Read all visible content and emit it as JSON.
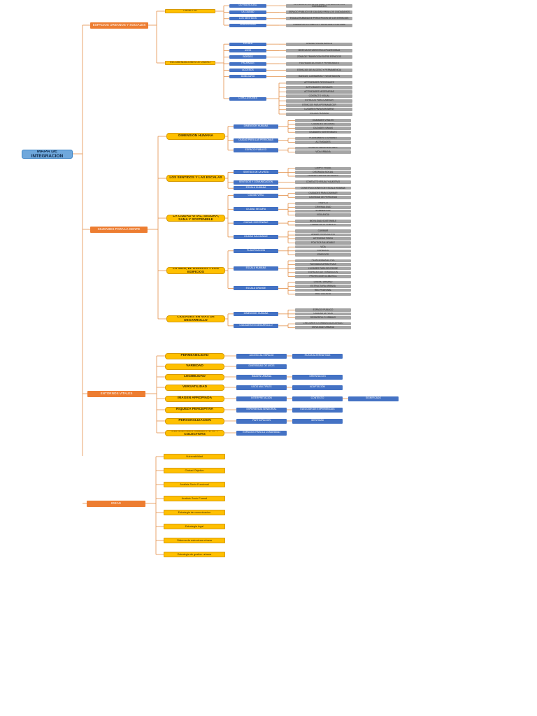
{
  "title": "MAPA DE INTEGRACION",
  "colors": {
    "root": "#6fa8dc",
    "section": "#ed7d31",
    "topic": "#ffc000",
    "detail": "#4472c4",
    "leaf": "#a5a5a5",
    "connector": "#e3904a"
  },
  "sections": [
    {
      "id": "espacios",
      "label": "ESPACIOS URBANOS Y SOCIALES",
      "topics": [
        {
          "label": "CARACTER",
          "details": [
            {
              "label": "LA VIDA SOCIAL",
              "leaves": [
                "EL ENCUENTRO DE LA VIDA Y ESPACIO DE LOS CIUDADANOS"
              ]
            },
            {
              "label": "LA CIUDAD",
              "leaves": [
                "ESPACIO PUBLICO DE CALIDAD PARA LOS CIUDADANOS"
              ]
            },
            {
              "label": "LOS SENTIDOS",
              "leaves": [
                "ESCALA HUMANA DE PERCEPCION DE LOS ESPACIOS"
              ]
            },
            {
              "label": "LA MOVILIDAD",
              "leaves": [
                "TRANSPORTE PUBLICO Y MOVILIDAD PEATONAL"
              ]
            }
          ]
        },
        {
          "label": "RECOMENDACIONES DE DISEÑO",
          "details": [
            {
              "label": "ESCALA",
              "leaves": [
                "UNIDAD VISUAL BASICA"
              ]
            },
            {
              "label": "USOS",
              "leaves": [
                "MEZCLA DE USOS EN LA PLANTA BAJA"
              ]
            },
            {
              "label": "BORDES",
              "leaves": [
                "ZONA DE TRANSICION ENTRE ESPACIOS"
              ]
            },
            {
              "label": "FACHADAS",
              "leaves": [
                "FACHADAS ACTIVAS Y PERMEABLES"
              ]
            },
            {
              "label": "ACCESOS",
              "leaves": [
                "ESPACIOS DE ACCESO Y PERMANENCIA"
              ]
            },
            {
              "label": "MOBILIARIO",
              "leaves": [
                "BANCAS, LUMINARIAS Y VEGETACION"
              ]
            },
            {
              "label": "CONCLUSIONES",
              "leaves": [
                "ACTIVIDADES OPCIONALES",
                "ACTIVIDADES SOCIALES",
                "ACTIVIDADES NECESARIAS",
                "CONTACTO VISUAL",
                "ESPACIOS PARA CAMINAR",
                "ESPACIOS PARA PERMANECER",
                "LUGARES PARA SENTARSE",
                "ESCALA HUMANA"
              ]
            }
          ]
        }
      ]
    },
    {
      "id": "ciudades",
      "label": "CIUDADES PARA LA GENTE",
      "topics": [
        {
          "label": "DIMENSION HUMANA",
          "details": [
            {
              "label": "DIMENSION HUMANA",
              "leaves": [
                "CIUDADES VITALES",
                "CIUDADES SEGURAS",
                "CIUDADES SANAS",
                "CIUDADES SOSTENIBLES"
              ]
            },
            {
              "label": "CIUDAD PARA LAS PERSONAS",
              "leaves": [
                "PLANEAMIENTO URBANO",
                "ACTIVIDADES"
              ]
            },
            {
              "label": "ESPACIO PUBLICO",
              "leaves": [
                "ESPACIO PARA PEATONES",
                "VIDA URBANA"
              ]
            }
          ]
        },
        {
          "label": "LOS SENTIDOS Y LAS ESCALAS",
          "details": [
            {
              "label": "SENTIDO DE LA VISTA",
              "leaves": [
                "CAMPO VISUAL",
                "DISTANCIA SOCIAL",
                "PERCEPCION DE DETALLES"
              ]
            },
            {
              "label": "SENTIDOS Y COMUNICACION",
              "leaves": [
                "CONTACTO VISUAL Y AUDITIVO"
              ]
            },
            {
              "label": "ESCALA HUMANA",
              "leaves": [
                "CONSTRUCCIONES DE ESCALA HUMANA"
              ]
            }
          ]
        },
        {
          "label": "LA CIUDAD VITAL, SEGURA, SANA Y SOSTENIBLE",
          "details": [
            {
              "label": "CIUDAD VITAL",
              "leaves": [
                "CIUDADES PARA CAMINAR",
                "CANTIDAD DE PERSONAS"
              ]
            },
            {
              "label": "CIUDAD SEGURA",
              "leaves": [
                "TRAFICO",
                "CRIMINALIDAD",
                "ILUMINACION",
                "VIGILANCIA"
              ]
            },
            {
              "label": "CIUDAD SOSTENIBLE",
              "leaves": [
                "MOVILIDAD SOSTENIBLE",
                "TRANSPORTE PUBLICO"
              ]
            },
            {
              "label": "CIUDAD SALUDABLE",
              "leaves": [
                "CAMINAR",
                "ANDAR EN BICICLETA",
                "ACTIVIDAD FISICA",
                "POLITICA SALUDABLE"
              ]
            }
          ]
        },
        {
          "label": "LA VIDA, EL ESPACIO Y LOS EDIFICIOS",
          "details": [
            {
              "label": "PLANIFICACION",
              "leaves": [
                "VIDA",
                "ESPACIOS",
                "EDIFICIOS"
              ]
            },
            {
              "label": "ESCALA HUMANA",
              "leaves": [
                "PLANTA BAJA ACTIVA",
                "FACHADAS ATRACTIVAS",
                "LUGARES PARA SENTARSE",
                "ESPACIOS DE TRANSICION",
                "PROTECCION CLIMATICA"
              ]
            },
            {
              "label": "ESCALA GRANDE",
              "leaves": [
                "DISEÑO URBANO",
                "ESTRUCTURA URBANA",
                "RED PEATONAL",
                "RED CICLISTA"
              ]
            }
          ]
        },
        {
          "label": "CIUDADES EN VIAS DE DESARROLLO",
          "details": [
            {
              "label": "DIMENSION HUMANA",
              "leaves": [
                "ESPACIO PUBLICO",
                "CALIDAD DE VIDA",
                "DESARROLLO URBANO"
              ]
            },
            {
              "label": "CIUDADES EN DESARROLLO",
              "leaves": [
                "CRECIMIENTO URBANO ACELERADO",
                "MOVILIDAD URBANA"
              ]
            }
          ]
        }
      ]
    },
    {
      "id": "entornos",
      "label": "ENTORNOS VITALES",
      "topics": [
        {
          "label": "PERMEABILIDAD",
          "details": [
            {
              "label": "ACCESO AL ESPACIO",
              "leaves": []
            },
            {
              "label": "RUTAS ALTERNATIVAS",
              "leaves": []
            }
          ]
        },
        {
          "label": "VARIEDAD",
          "details": [
            {
              "label": "DIVERSIDAD DE USOS",
              "leaves": []
            }
          ]
        },
        {
          "label": "LEGIBILIDAD",
          "details": [
            {
              "label": "IMAGEN URBANA",
              "leaves": []
            },
            {
              "label": "ORIENTACION",
              "leaves": []
            }
          ]
        },
        {
          "label": "VERSATILIDAD",
          "details": [
            {
              "label": "USOS MULTIPLES",
              "leaves": []
            },
            {
              "label": "ADAPTACION",
              "leaves": []
            }
          ]
        },
        {
          "label": "IMAGEN APROPIADA",
          "details": [
            {
              "label": "INTERPRETACION",
              "leaves": []
            },
            {
              "label": "CONTEXTO",
              "leaves": []
            },
            {
              "label": "SIGNIFICADO",
              "leaves": []
            }
          ]
        },
        {
          "label": "RIQUEZA PERCEPTIVA",
          "details": [
            {
              "label": "EXPERIENCIA SENSORIAL",
              "leaves": []
            },
            {
              "label": "ELECCION DE EXPERIENCIAS",
              "leaves": []
            }
          ]
        },
        {
          "label": "PERSONALIZACION",
          "details": [
            {
              "label": "PARTICIPACION",
              "leaves": []
            },
            {
              "label": "IDENTIDAD",
              "leaves": []
            }
          ]
        },
        {
          "label": "CUALIDADES SUBJETIVAS Y COLECTIVAS",
          "details": [
            {
              "label": "ESPACIOS PARA LA COMUNIDAD",
              "leaves": []
            }
          ]
        }
      ]
    },
    {
      "id": "ideas",
      "label": "IDEAS",
      "bullets": [
        "Vulnerabilidad",
        "Ciudad Objetivo",
        "Analisis Socio Funcional",
        "Analisis Socio Formal",
        "Estrategia de comunicacion",
        "Estrategia legal",
        "Sistema de estructura urbana",
        "Estrategia de gestion urbana"
      ]
    }
  ]
}
